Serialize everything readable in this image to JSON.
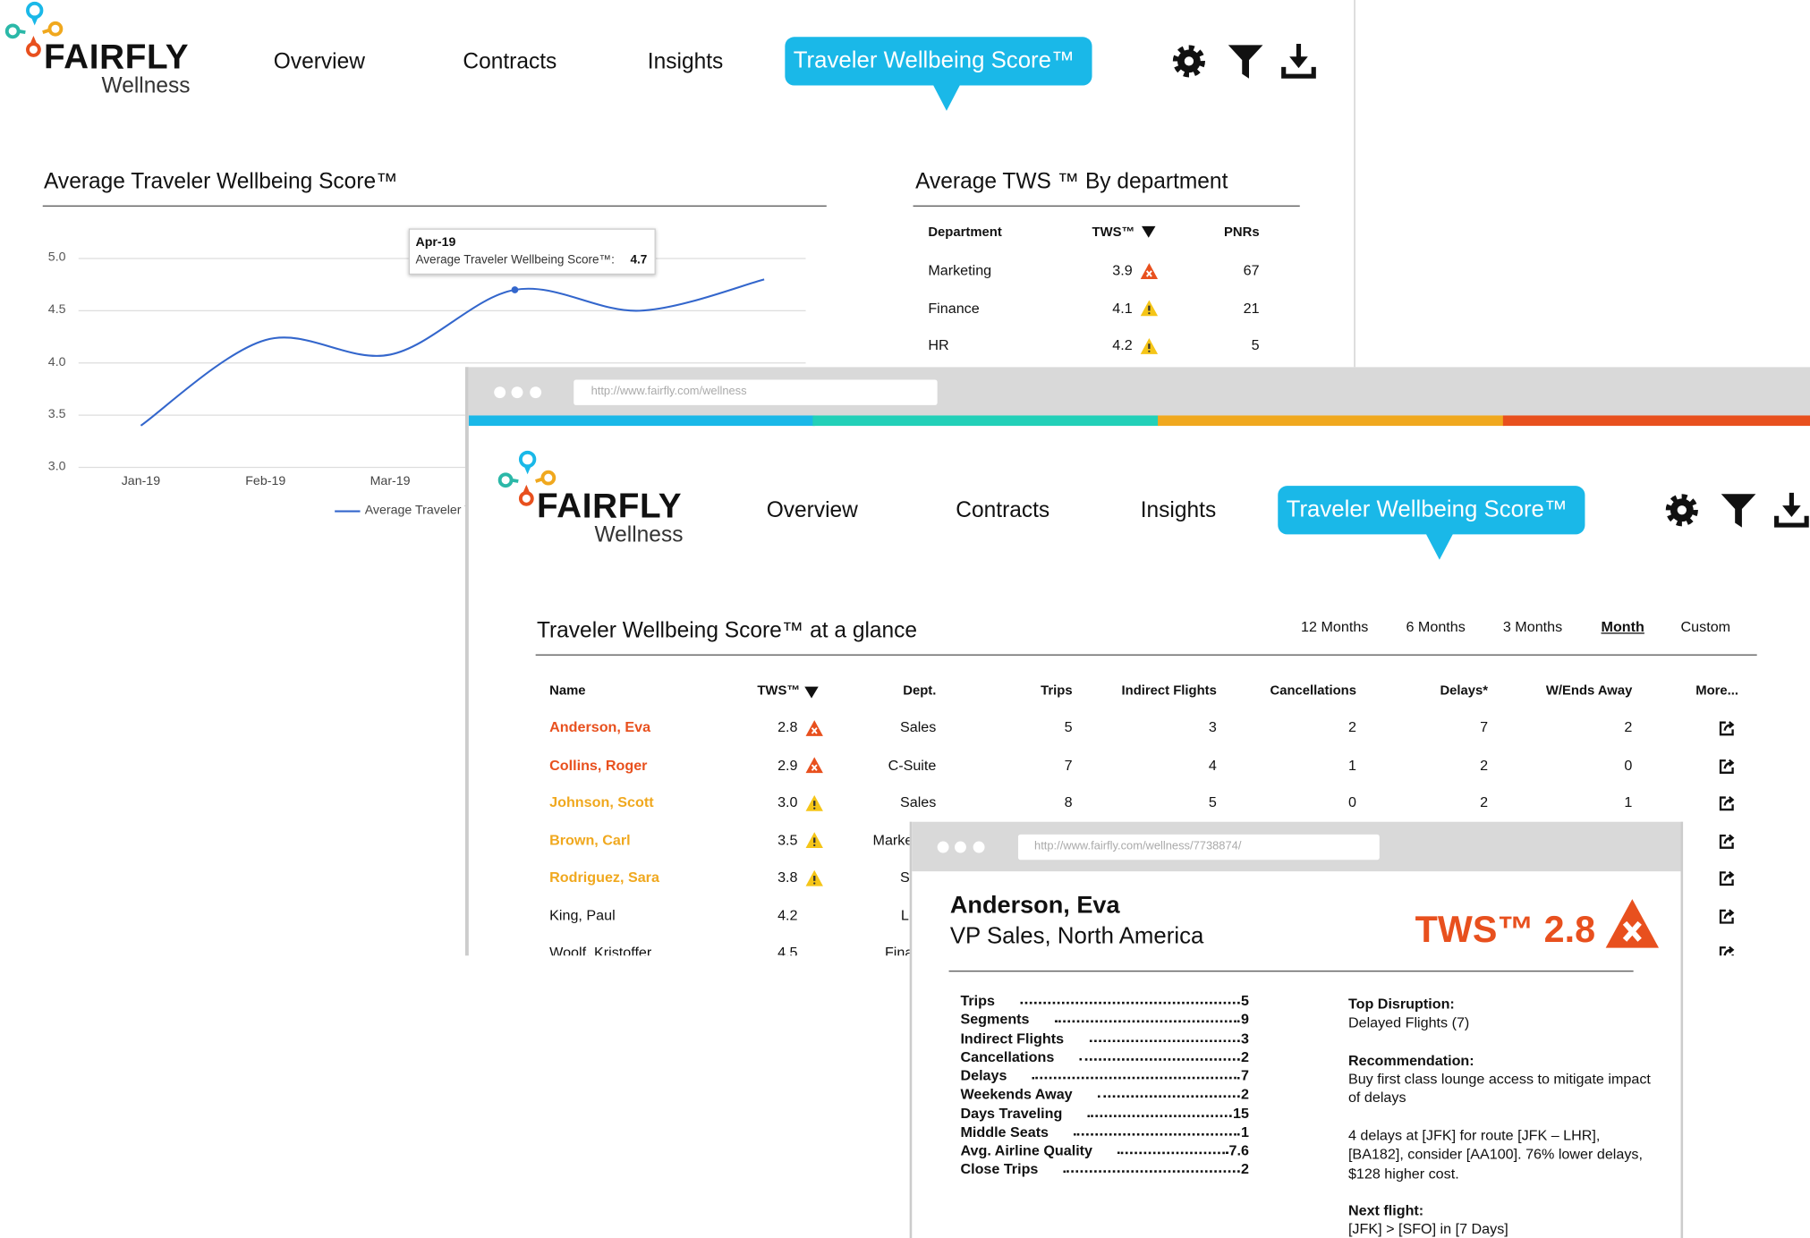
{
  "back_window": {
    "logo": {
      "brand": "FAIRFLY",
      "product": "Wellness"
    },
    "nav": [
      "Overview",
      "Contracts",
      "Insights"
    ],
    "active_tab": "Traveler Wellbeing Score™",
    "chart": {
      "type": "line",
      "title": "Average Traveler Wellbeing Score™",
      "categories": [
        "Jan-19",
        "Feb-19",
        "Mar-19",
        "Apr-19",
        null,
        null
      ],
      "series": [
        {
          "name": "Average Traveler Wellbeing Score™",
          "color": "#3366cc",
          "values": [
            3.4,
            4.22,
            4.08,
            4.7,
            4.5,
            4.8
          ]
        }
      ],
      "ylim": [
        3,
        5
      ],
      "yticks": [
        {
          "value": 3,
          "label": "3.0"
        },
        {
          "value": 3.5,
          "label": "3.5"
        },
        {
          "value": 4,
          "label": "4.0"
        },
        {
          "value": 4.5,
          "label": "4.5"
        },
        {
          "value": 5,
          "label": "5.0"
        }
      ],
      "grid": true,
      "tooltip_label": "Average Traveler Wellbeing Score™:"
    },
    "department": {
      "title": "Average TWS ™ By department",
      "columns": [
        "Department",
        "TWS™",
        "PNRs"
      ],
      "rows": [
        {
          "name": "Marketing",
          "tws": 3.9,
          "status": "alert",
          "pnrs": 67
        },
        {
          "name": "Finance",
          "tws": 4.1,
          "status": "warning",
          "pnrs": 21
        },
        {
          "name": "HR",
          "tws": 4.2,
          "status": "warning",
          "pnrs": 5
        }
      ]
    }
  },
  "middle_window": {
    "url": "http://www.fairfly.com/wellness",
    "logo": {
      "brand": "FAIRFLY",
      "product": "Wellness"
    },
    "nav": [
      "Overview",
      "Contracts",
      "Insights"
    ],
    "active_tab": "Traveler Wellbeing Score™",
    "title": "Traveler Wellbeing Score™ at a glance",
    "periods": [
      "12 Months",
      "6 Months",
      "3 Months",
      "Month",
      "Custom"
    ],
    "selected_period": "Month",
    "table": {
      "columns": [
        "Name",
        "TWS™",
        "Dept.",
        "Trips",
        "Indirect Flights",
        "Cancellations",
        "Delays*",
        "W/Ends Away",
        "More..."
      ],
      "rows": [
        {
          "name": "Anderson, Eva",
          "tws": "2.8",
          "status": "alert",
          "dept": "Sales",
          "trips": 5,
          "indirect": 3,
          "cancellations": 2,
          "delays": 7,
          "weekends": 2
        },
        {
          "name": "Collins, Roger",
          "tws": "2.9",
          "status": "alert",
          "dept": "C-Suite",
          "trips": 7,
          "indirect": 4,
          "cancellations": 1,
          "delays": 2,
          "weekends": 0
        },
        {
          "name": "Johnson, Scott",
          "tws": "3.0",
          "status": "warning",
          "dept": "Sales",
          "trips": 8,
          "indirect": 5,
          "cancellations": 0,
          "delays": 2,
          "weekends": 1
        },
        {
          "name": "Brown, Carl",
          "tws": "3.5",
          "status": "warning",
          "dept": "Marketing",
          "trips": null,
          "indirect": null,
          "cancellations": null,
          "delays": null,
          "weekends": null
        },
        {
          "name": "Rodriguez, Sara",
          "tws": "3.8",
          "status": "warning",
          "dept": "Sales",
          "trips": null,
          "indirect": null,
          "cancellations": null,
          "delays": null,
          "weekends": null
        },
        {
          "name": "King, Paul",
          "tws": "4.2",
          "status": null,
          "dept": "Legal",
          "trips": null,
          "indirect": null,
          "cancellations": null,
          "delays": null,
          "weekends": null
        },
        {
          "name": "Woolf, Kristoffer",
          "tws": "4.5",
          "status": null,
          "dept": "Finance",
          "trips": null,
          "indirect": null,
          "cancellations": null,
          "delays": null,
          "weekends": null
        }
      ]
    }
  },
  "detail_window": {
    "url": "http://www.fairfly.com/wellness/7738874/",
    "name": "Anderson, Eva",
    "role": "VP Sales, North America",
    "score_label": "TWS™",
    "score": 2.8,
    "stats": [
      {
        "label": "Trips",
        "value": 5
      },
      {
        "label": "Segments",
        "value": 9
      },
      {
        "label": "Indirect Flights",
        "value": 3
      },
      {
        "label": "Cancellations",
        "value": 2
      },
      {
        "label": "Delays",
        "value": 7
      },
      {
        "label": "Weekends Away",
        "value": 2
      },
      {
        "label": "Days Traveling",
        "value": 15
      },
      {
        "label": "Middle Seats",
        "value": 1
      },
      {
        "label": "Avg. Airline Quality",
        "value": 7.6
      },
      {
        "label": "Close Trips",
        "value": 2
      }
    ],
    "top_disruption": {
      "label": "Top Disruption:",
      "text": "Delayed Flights (7)"
    },
    "recommendation": {
      "label": "Recommendation:",
      "text": "Buy first class lounge access to mitigate impact of delays",
      "detail": "4 delays at [JFK] for route [JFK – LHR], [BA182], consider [AA100]. 76% lower delays, $128 higher cost."
    },
    "next_flight": {
      "label": "Next flight:",
      "text": "[JFK] > [SFO] in [7 Days]"
    }
  }
}
